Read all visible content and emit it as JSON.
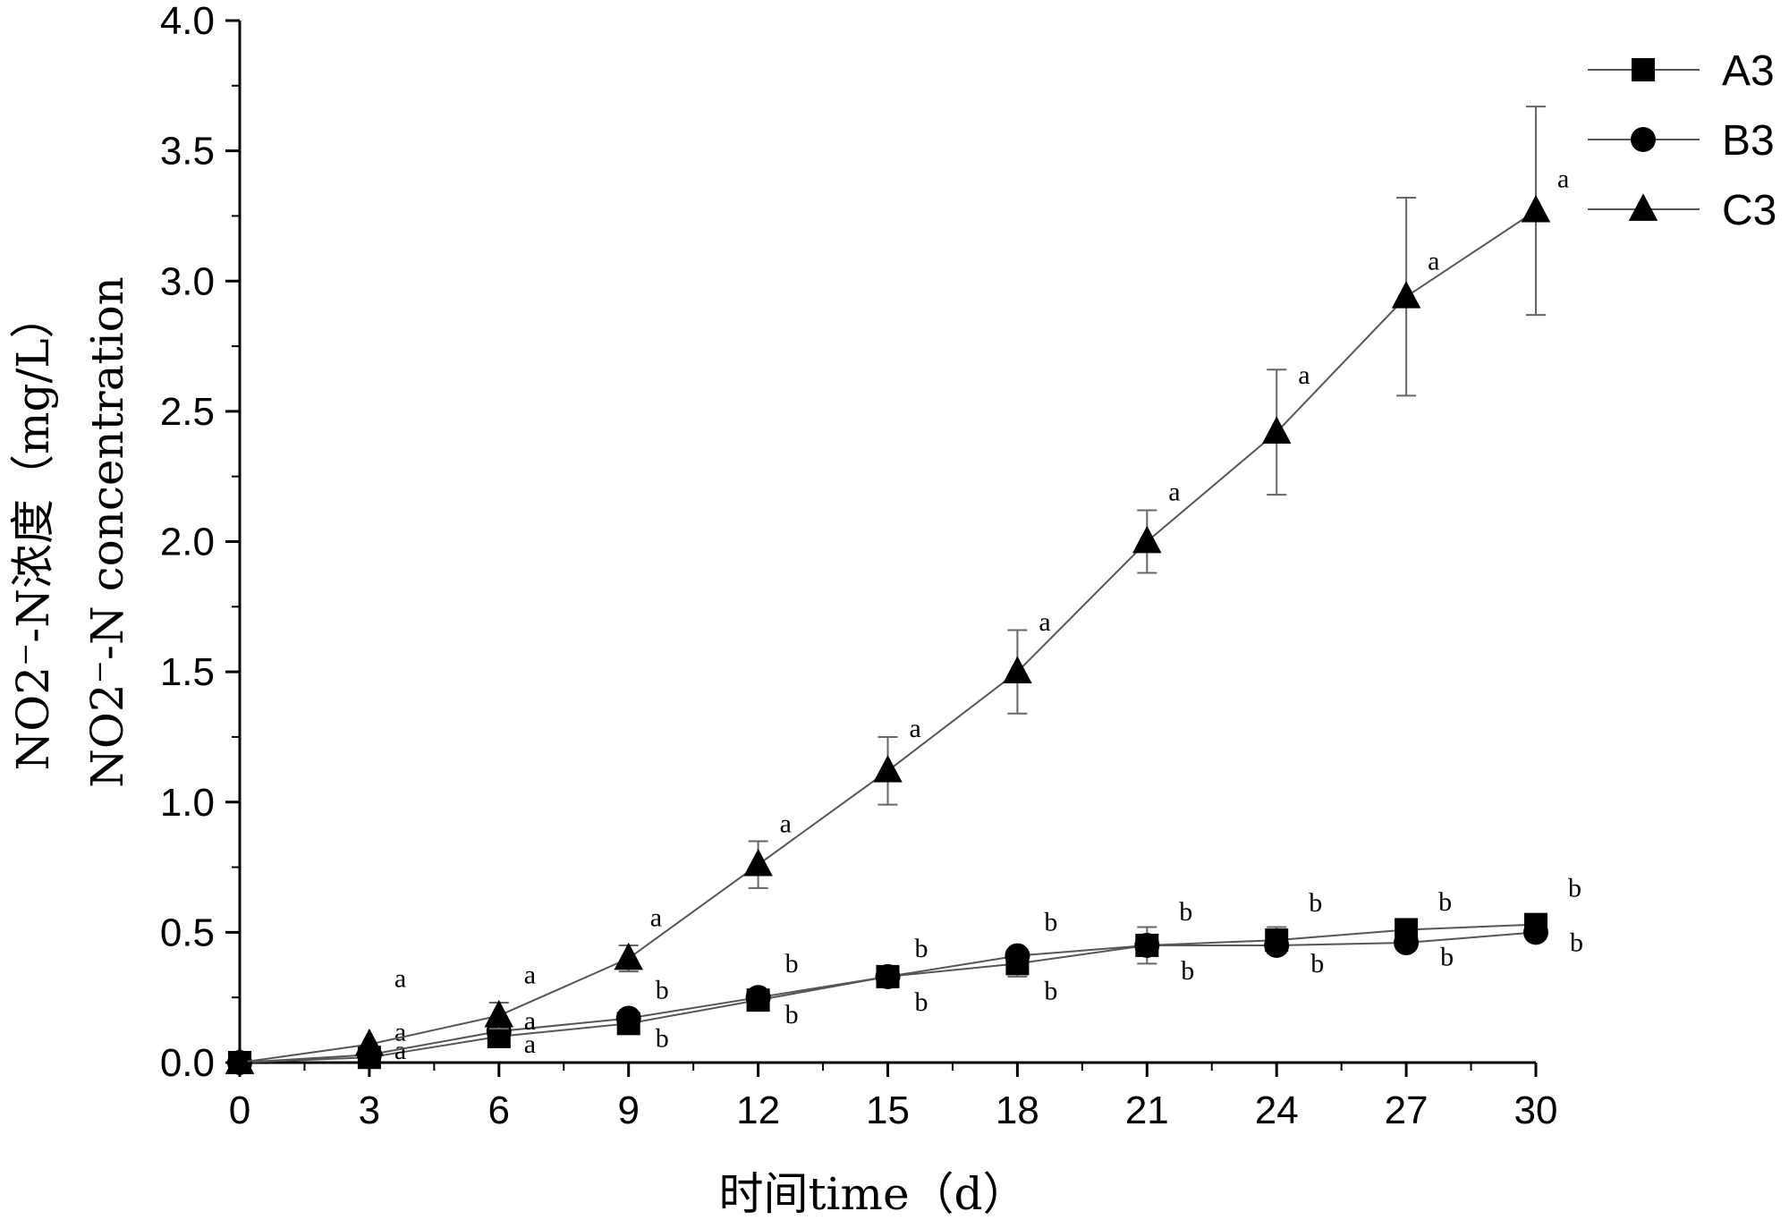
{
  "chart_data": {
    "type": "line",
    "xlabel": "时间time（d）",
    "ylabel_line1": "NO2⁻-N浓度（mg/L）",
    "ylabel_line2": "NO2⁻-N concentration",
    "xlim": [
      0,
      30
    ],
    "ylim": [
      0,
      4.0
    ],
    "x_ticks": [
      "0",
      "3",
      "6",
      "9",
      "12",
      "15",
      "18",
      "21",
      "24",
      "27",
      "30"
    ],
    "y_ticks": [
      "0.0",
      "0.5",
      "1.0",
      "1.5",
      "2.0",
      "2.5",
      "3.0",
      "3.5",
      "4.0"
    ],
    "x": [
      0,
      3,
      6,
      9,
      12,
      15,
      18,
      21,
      24,
      27,
      30
    ],
    "grid": false,
    "legend_position": "top-right",
    "series": [
      {
        "name": "A3",
        "marker": "square",
        "values": [
          0.0,
          0.02,
          0.1,
          0.15,
          0.24,
          0.33,
          0.38,
          0.45,
          0.47,
          0.51,
          0.53
        ],
        "errors": [
          0,
          0,
          0,
          0,
          0,
          0,
          0.05,
          0.07,
          0.05,
          0,
          0
        ],
        "labels": [
          "",
          "a",
          "a",
          "b",
          "b",
          "b",
          "b",
          "b",
          "b",
          "b",
          "b"
        ]
      },
      {
        "name": "B3",
        "marker": "circle",
        "values": [
          0.0,
          0.03,
          0.12,
          0.17,
          0.25,
          0.33,
          0.41,
          0.45,
          0.45,
          0.46,
          0.5
        ],
        "errors": [
          0,
          0,
          0,
          0,
          0,
          0,
          0,
          0,
          0,
          0,
          0
        ],
        "labels": [
          "",
          "a",
          "a",
          "b",
          "b",
          "b",
          "b",
          "b",
          "b",
          "b",
          "b"
        ]
      },
      {
        "name": "C3",
        "marker": "triangle",
        "values": [
          0.0,
          0.07,
          0.18,
          0.4,
          0.76,
          1.12,
          1.5,
          2.0,
          2.42,
          2.94,
          3.27
        ],
        "errors": [
          0,
          0,
          0.05,
          0.05,
          0.09,
          0.13,
          0.16,
          0.12,
          0.24,
          0.38,
          0.4
        ],
        "labels": [
          "",
          "a",
          "a",
          "a",
          "a",
          "a",
          "a",
          "a",
          "a",
          "a",
          "a"
        ]
      }
    ]
  }
}
